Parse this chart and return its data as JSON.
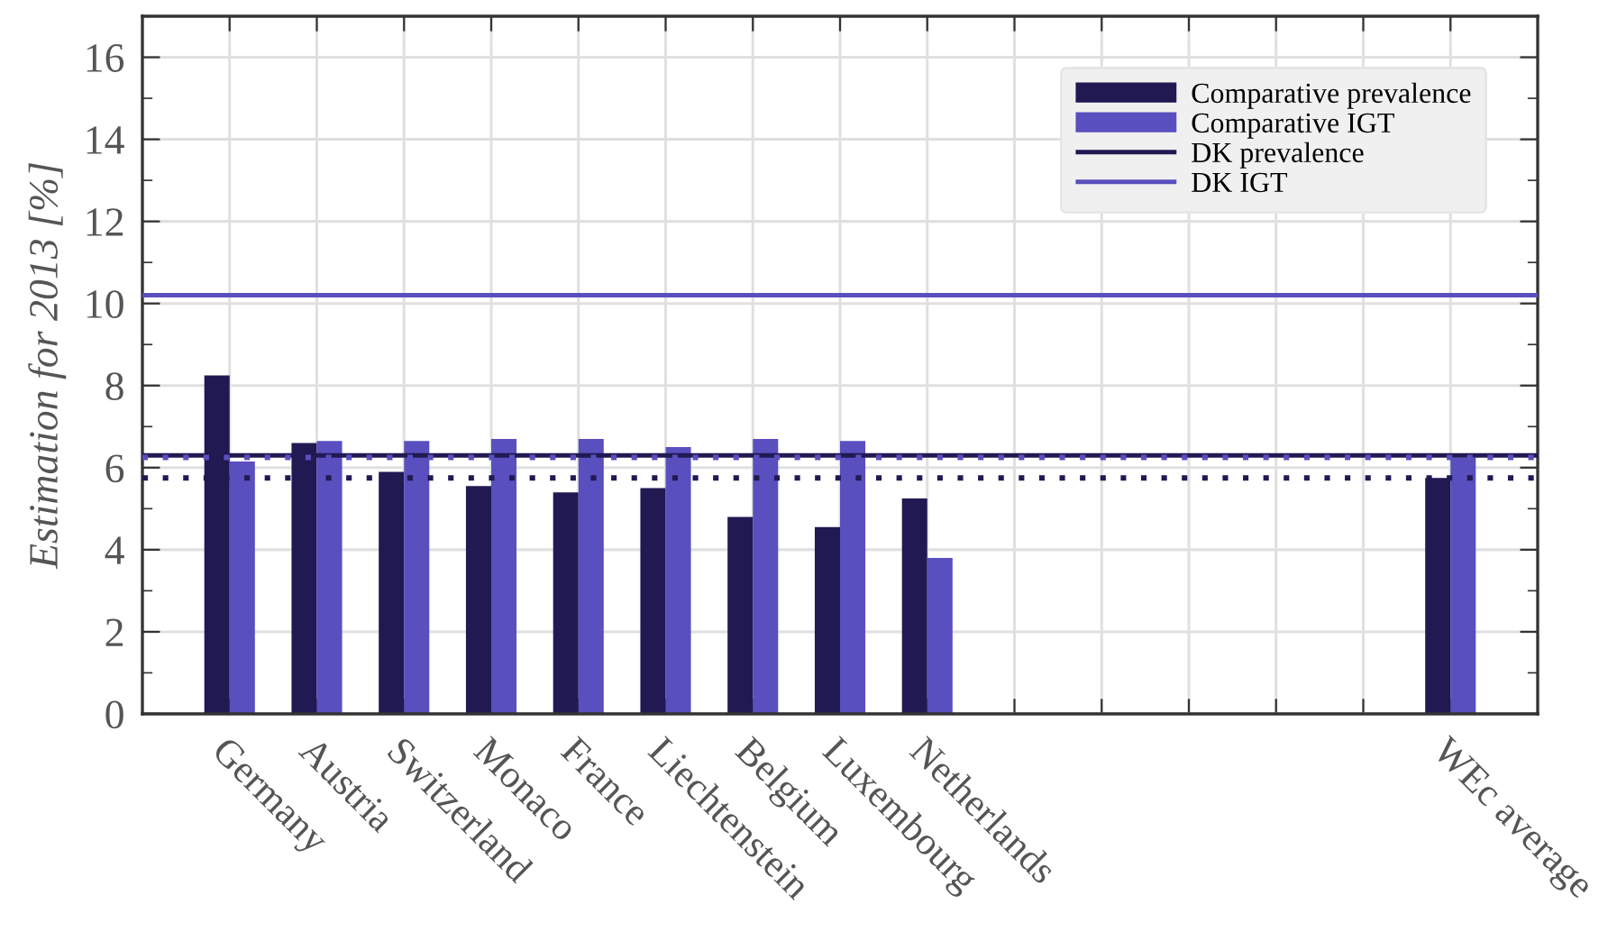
{
  "chart_data": {
    "type": "bar",
    "ylabel": "Estimation for 2013 [%]",
    "categories": [
      "Germany",
      "Austria",
      "Switzerland",
      "Monaco",
      "France",
      "Liechtenstein",
      "Belgium",
      "Luxembourg",
      "Netherlands",
      null,
      null,
      null,
      null,
      null,
      "WEc average"
    ],
    "series": [
      {
        "name": "Comparative prevalence",
        "color": "#211952",
        "values": [
          8.25,
          6.6,
          5.9,
          5.55,
          5.4,
          5.5,
          4.8,
          4.55,
          5.25,
          null,
          null,
          null,
          null,
          null,
          5.75
        ]
      },
      {
        "name": "Comparative IGT",
        "color": "#5a4fbe",
        "values": [
          6.15,
          6.65,
          6.65,
          6.7,
          6.7,
          6.5,
          6.7,
          6.65,
          3.8,
          null,
          null,
          null,
          null,
          null,
          6.25
        ]
      }
    ],
    "ref_lines": [
      {
        "axis": "y",
        "value": 6.3,
        "label": "DK prevalence",
        "color": "#211952"
      },
      {
        "axis": "y",
        "value": 10.2,
        "label": "DK IGT",
        "color": "#5a4fbe"
      },
      {
        "axis": "y",
        "value": 5.75,
        "color": "#211952",
        "line_style": "dotted"
      },
      {
        "axis": "y",
        "value": 6.25,
        "color": "#5a4fbe",
        "line_style": "dotted"
      }
    ],
    "ylim": [
      0,
      17
    ],
    "yticks": [
      0,
      {
        "value": 1,
        "label": null
      },
      2,
      {
        "value": 3,
        "label": null
      },
      4,
      {
        "value": 5,
        "label": null
      },
      6,
      {
        "value": 7,
        "label": null
      },
      8,
      {
        "value": 9,
        "label": null
      },
      10,
      {
        "value": 11,
        "label": null
      },
      12,
      {
        "value": 13,
        "label": null
      },
      14,
      {
        "value": 15,
        "label": null
      },
      16
    ],
    "grid": true,
    "legend": "top right"
  }
}
